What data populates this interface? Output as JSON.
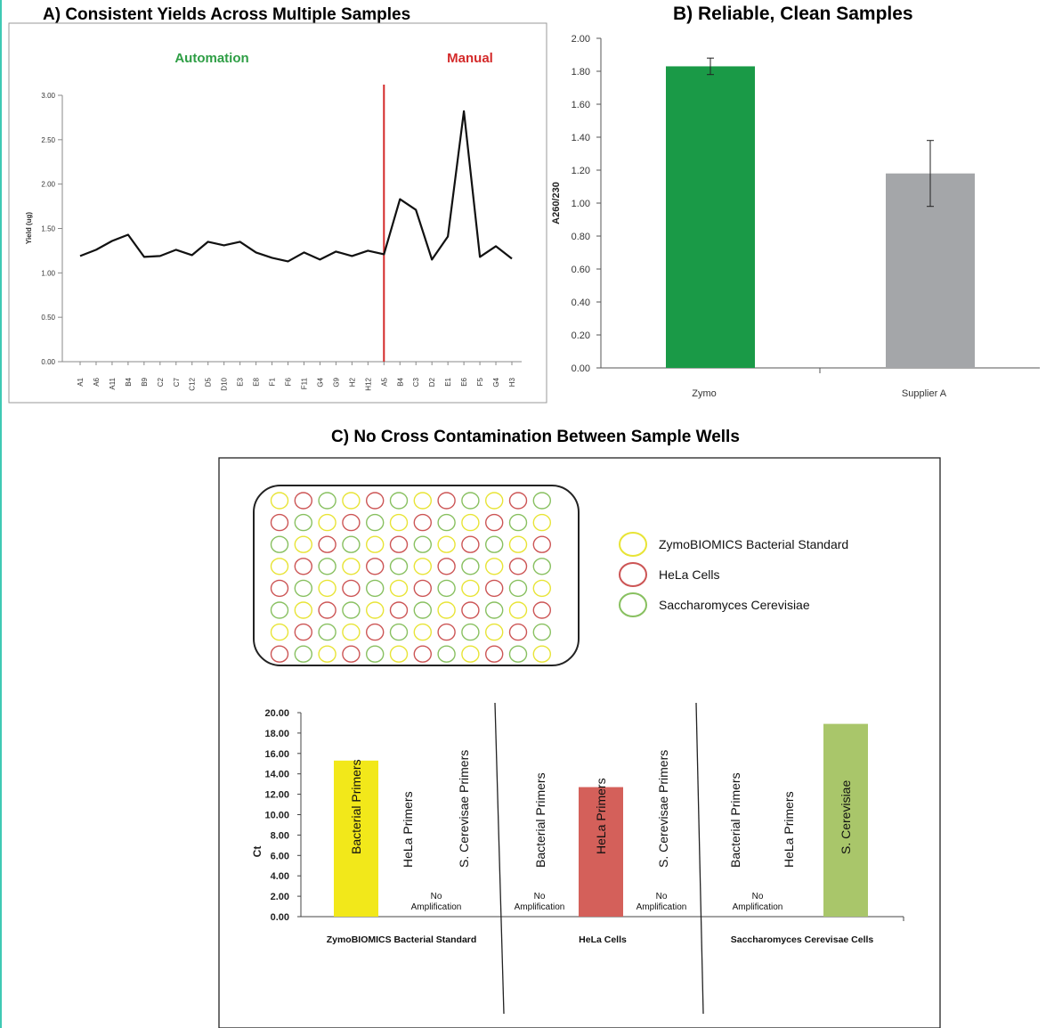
{
  "charts": {
    "a": {
      "title": "A) Consistent Yields Across Multiple Samples",
      "ylabel": "Yield (ug)",
      "region_labels": {
        "automation": "Automation",
        "manual": "Manual"
      },
      "yticks": [
        "3.00",
        "2.50",
        "2.00",
        "1.50",
        "1.00",
        "0.50",
        "0.00"
      ]
    },
    "b": {
      "title": "B) Reliable, Clean Samples",
      "ylabel": "A260/230",
      "yticks": [
        "2.00",
        "1.80",
        "1.60",
        "1.40",
        "1.20",
        "1.00",
        "0.80",
        "0.60",
        "0.40",
        "0.20",
        "0.00"
      ]
    },
    "c": {
      "title": "C) No Cross Contamination Between Sample Wells",
      "ylabel": "Ct",
      "yticks": [
        "20.00",
        "18.00",
        "16.00",
        "14.00",
        "12.00",
        "10.00",
        "8.00",
        "6.00",
        "4.00",
        "2.00",
        "0.00"
      ],
      "no_amp_line1": "No",
      "no_amp_line2": "Amplification",
      "legend": [
        "ZymoBIOMICS Bacterial Standard",
        "HeLa Cells",
        "Saccharomyces Cerevisiae"
      ]
    }
  },
  "colors": {
    "zymo_green": "#1a9a47",
    "supplier_gray": "#a4a6a9",
    "bacterial_yellow": "#f2e81a",
    "hela_red": "#d4605a",
    "cerevisiae_green": "#a9c66a",
    "automation_text": "#2e9e45",
    "manual_text": "#d42a2a",
    "divider_red": "#d42a2a",
    "well_yellow": "#e8e436",
    "well_red": "#cc5555",
    "well_green": "#88c060"
  },
  "chart_data": [
    {
      "type": "line",
      "x": [
        "A1",
        "A6",
        "A11",
        "B4",
        "B9",
        "C2",
        "C7",
        "C12",
        "D5",
        "D10",
        "E3",
        "E8",
        "F1",
        "F6",
        "F11",
        "G4",
        "G9",
        "H2",
        "H12",
        "A5",
        "B4",
        "C3",
        "D2",
        "E1",
        "E6",
        "F5",
        "G4",
        "H3"
      ],
      "values": [
        1.19,
        1.26,
        1.36,
        1.43,
        1.18,
        1.19,
        1.26,
        1.2,
        1.35,
        1.31,
        1.35,
        1.23,
        1.17,
        1.13,
        1.23,
        1.15,
        1.24,
        1.19,
        1.25,
        1.21,
        1.83,
        1.71,
        1.15,
        1.41,
        2.82,
        1.18,
        1.3,
        1.16
      ],
      "ylim": [
        0,
        3
      ],
      "divider_after_index": 19
    },
    {
      "type": "bar",
      "categories": [
        "Zymo",
        "Supplier A"
      ],
      "values": [
        1.83,
        1.18
      ],
      "errors": [
        0.05,
        0.2
      ],
      "ylim": [
        0,
        2
      ]
    },
    {
      "type": "bar",
      "groups": [
        {
          "label": "ZymoBIOMICS Bacterial Standard",
          "bars": [
            {
              "label": "Bacterial Primers",
              "value": 15.3
            },
            {
              "label": "HeLa Primers",
              "value": null
            },
            {
              "label": "S. Cerevisae Primers",
              "value": null
            }
          ]
        },
        {
          "label": "HeLa Cells",
          "bars": [
            {
              "label": "Bacterial Primers",
              "value": null
            },
            {
              "label": "HeLa Primers",
              "value": 12.7
            },
            {
              "label": "S. Cerevisae Primers",
              "value": null
            }
          ]
        },
        {
          "label": "Saccharomyces Cerevisae Cells",
          "bars": [
            {
              "label": "Bacterial Primers",
              "value": null
            },
            {
              "label": "HeLa Primers",
              "value": null
            },
            {
              "label": "S. Cerevisiae",
              "value": 18.9
            }
          ]
        }
      ],
      "ylim": [
        0,
        20
      ]
    }
  ],
  "plate": {
    "rows": [
      [
        "y",
        "r",
        "g",
        "y",
        "r",
        "g",
        "y",
        "r",
        "g",
        "y",
        "r",
        "g"
      ],
      [
        "r",
        "g",
        "y",
        "r",
        "g",
        "y",
        "r",
        "g",
        "y",
        "r",
        "g",
        "y"
      ],
      [
        "g",
        "y",
        "r",
        "g",
        "y",
        "r",
        "g",
        "y",
        "r",
        "g",
        "y",
        "r"
      ],
      [
        "y",
        "r",
        "g",
        "y",
        "r",
        "g",
        "y",
        "r",
        "g",
        "y",
        "r",
        "g"
      ],
      [
        "r",
        "g",
        "y",
        "r",
        "g",
        "y",
        "r",
        "g",
        "y",
        "r",
        "g",
        "y"
      ],
      [
        "g",
        "y",
        "r",
        "g",
        "y",
        "r",
        "g",
        "y",
        "r",
        "g",
        "y",
        "r"
      ],
      [
        "y",
        "r",
        "g",
        "y",
        "r",
        "g",
        "y",
        "r",
        "g",
        "y",
        "r",
        "g"
      ],
      [
        "r",
        "g",
        "y",
        "r",
        "g",
        "y",
        "r",
        "g",
        "y",
        "r",
        "g",
        "y"
      ]
    ]
  }
}
